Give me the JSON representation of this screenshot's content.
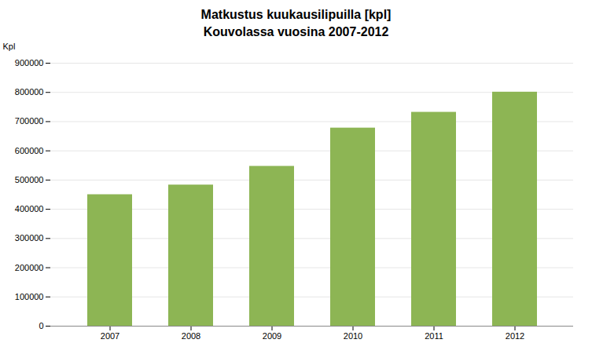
{
  "chart_data": {
    "type": "bar",
    "title": "Matkustus kuukausilipuilla [kpl]",
    "subtitle": "Kouvolassa vuosina 2007-2012",
    "ylabel": "Kpl",
    "categories": [
      "2007",
      "2008",
      "2009",
      "2010",
      "2011",
      "2012"
    ],
    "values": [
      450000,
      483000,
      547000,
      678000,
      732000,
      801000
    ],
    "color": "#8db554",
    "ylim": [
      0,
      900000
    ],
    "yticks": [
      0,
      100000,
      200000,
      300000,
      400000,
      500000,
      600000,
      700000,
      800000,
      900000
    ],
    "grid": true
  }
}
